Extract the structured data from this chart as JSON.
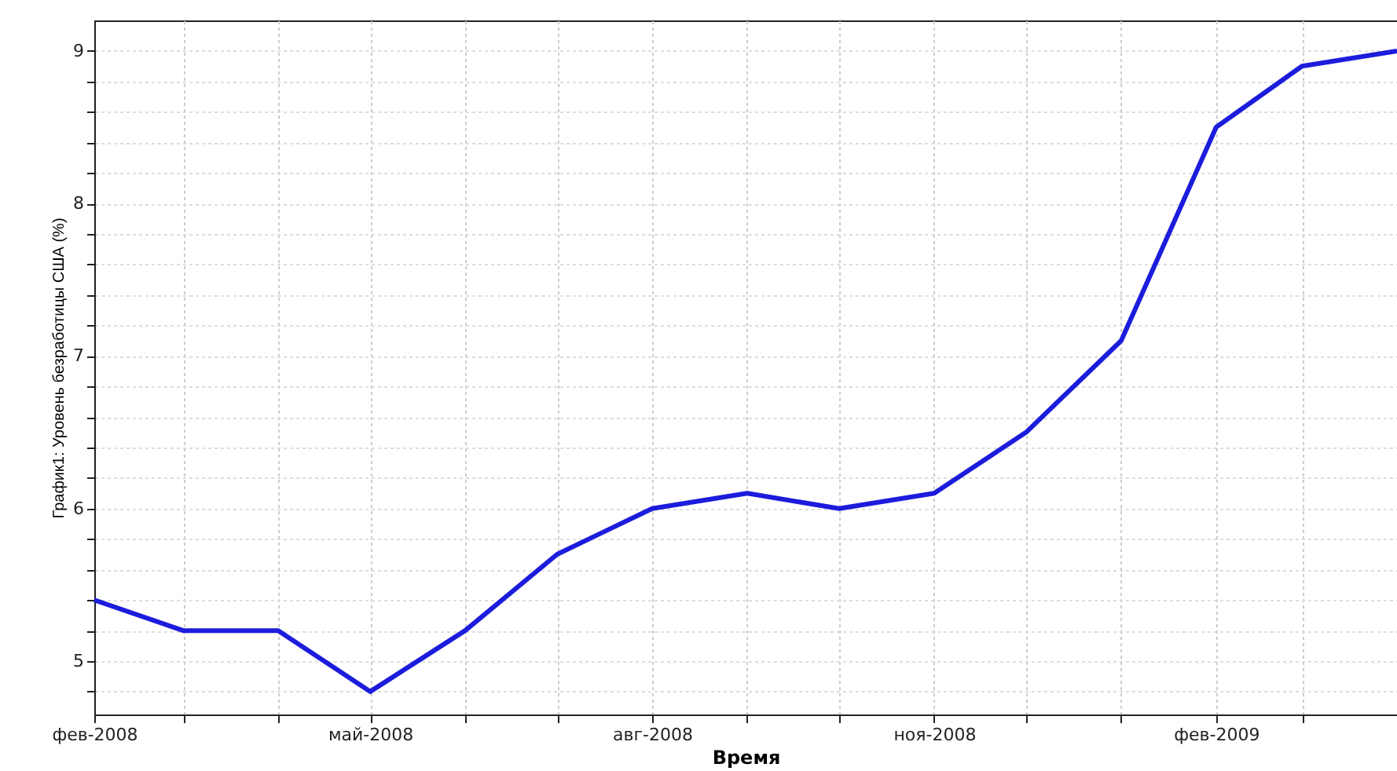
{
  "chart_data": {
    "type": "line",
    "xlabel": "Время",
    "ylabel": "График1: Уровень безработицы США (%)",
    "x": [
      "2008-02",
      "2008-03",
      "2008-04",
      "2008-05",
      "2008-06",
      "2008-07",
      "2008-08",
      "2008-09",
      "2008-10",
      "2008-11",
      "2008-12",
      "2009-01",
      "2009-02",
      "2009-03",
      "2009-04"
    ],
    "series": [
      {
        "color": "#1c1cdc",
        "values": [
          5.4,
          5.2,
          5.2,
          4.8,
          5.2,
          5.7,
          6.0,
          6.1,
          6.0,
          6.1,
          6.5,
          7.1,
          8.5,
          8.9,
          9.0
        ]
      }
    ],
    "xlim": [
      "2008-02",
      "2009-04"
    ],
    "xticks": [
      {
        "value": "2008-02",
        "label": "фев-2008"
      },
      {
        "value": "2008-03",
        "label": null
      },
      {
        "value": "2008-04",
        "label": null
      },
      {
        "value": "2008-05",
        "label": "май-2008"
      },
      {
        "value": "2008-06",
        "label": null
      },
      {
        "value": "2008-07",
        "label": null
      },
      {
        "value": "2008-08",
        "label": "авг-2008"
      },
      {
        "value": "2008-09",
        "label": null
      },
      {
        "value": "2008-10",
        "label": null
      },
      {
        "value": "2008-11",
        "label": "ноя-2008"
      },
      {
        "value": "2008-12",
        "label": null
      },
      {
        "value": "2009-01",
        "label": null
      },
      {
        "value": "2009-02",
        "label": "фев-2009"
      },
      {
        "value": "2009-03",
        "label": null
      }
    ],
    "ylim": [
      4.65,
      9.2
    ],
    "yticks": [
      {
        "value": 4.8,
        "label": null
      },
      5,
      {
        "value": 5.2,
        "label": null
      },
      {
        "value": 5.4,
        "label": null
      },
      {
        "value": 5.6,
        "label": null
      },
      {
        "value": 5.8,
        "label": null
      },
      6,
      {
        "value": 6.2,
        "label": null
      },
      {
        "value": 6.4,
        "label": null
      },
      {
        "value": 6.6,
        "label": null
      },
      {
        "value": 6.8,
        "label": null
      },
      7,
      {
        "value": 7.2,
        "label": null
      },
      {
        "value": 7.4,
        "label": null
      },
      {
        "value": 7.6,
        "label": null
      },
      {
        "value": 7.8,
        "label": null
      },
      8,
      {
        "value": 8.2,
        "label": null
      },
      {
        "value": 8.4,
        "label": null
      },
      {
        "value": 8.6,
        "label": null
      },
      {
        "value": 8.8,
        "label": null
      },
      9
    ],
    "grid": true,
    "marker": "none",
    "line_style": "solid"
  }
}
